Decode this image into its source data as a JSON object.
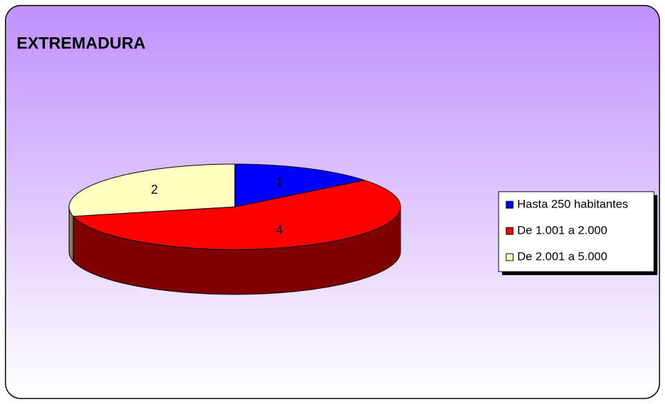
{
  "chart_data": {
    "type": "pie",
    "title": "EXTREMADURA",
    "categories": [
      "Hasta 250 habitantes",
      "De 1.001 a 2.000",
      "De 2.001 a 5.000"
    ],
    "values": [
      1,
      4,
      2
    ],
    "colors": [
      "#0000ff",
      "#ff0000",
      "#ffffc0"
    ],
    "legend": "right"
  }
}
